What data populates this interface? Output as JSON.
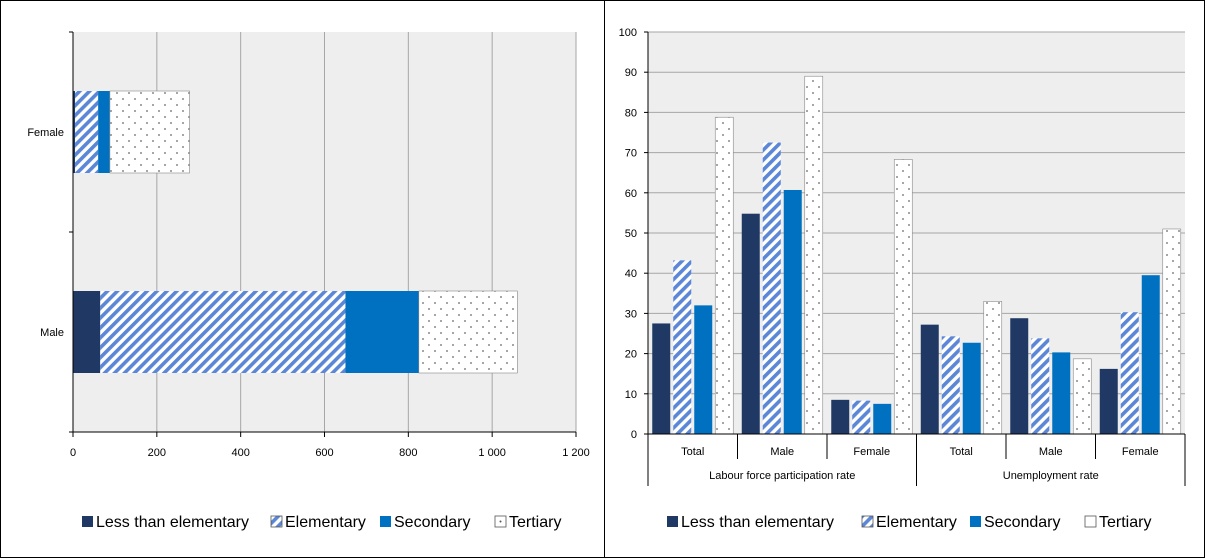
{
  "chart_data": [
    {
      "type": "bar",
      "orientation": "horizontal",
      "stacked": true,
      "categories": [
        "Female",
        "Male"
      ],
      "series": [
        {
          "name": "Less than elementary",
          "values": [
            5,
            65
          ]
        },
        {
          "name": "Elementary",
          "values": [
            55,
            585
          ]
        },
        {
          "name": "Secondary",
          "values": [
            28,
            175
          ]
        },
        {
          "name": "Tertiary",
          "values": [
            190,
            235
          ]
        }
      ],
      "xlim": [
        0,
        1200
      ],
      "xticks": [
        "0",
        "200",
        "400",
        "600",
        "800",
        "1 000",
        "1 200"
      ],
      "grid": "vertical",
      "legend": "bottom",
      "colors": {
        "Less than elementary": "#1f3864",
        "Elementary": "#5b87d6",
        "Secondary": "#0070c0",
        "Tertiary": "#ffffff"
      }
    },
    {
      "type": "bar",
      "orientation": "vertical",
      "groups": [
        {
          "label": "Labour force participation rate",
          "categories": [
            "Total",
            "Male",
            "Female"
          ]
        },
        {
          "label": "Unemployment rate",
          "categories": [
            "Total",
            "Male",
            "Female"
          ]
        }
      ],
      "categories": [
        "Total",
        "Male",
        "Female",
        "Total",
        "Male",
        "Female"
      ],
      "series": [
        {
          "name": "Less than elementary",
          "values": [
            27.5,
            54.8,
            8.5,
            27.2,
            28.8,
            16.2
          ]
        },
        {
          "name": "Elementary",
          "values": [
            43.2,
            72.5,
            8.3,
            24.3,
            23.8,
            30.3
          ]
        },
        {
          "name": "Secondary",
          "values": [
            32,
            60.7,
            7.5,
            22.7,
            20.3,
            39.5
          ]
        },
        {
          "name": "Tertiary",
          "values": [
            78.8,
            89,
            68.3,
            33,
            18.7,
            51
          ]
        }
      ],
      "ylim": [
        0,
        100
      ],
      "yticks": [
        "0",
        "10",
        "20",
        "30",
        "40",
        "50",
        "60",
        "70",
        "80",
        "90",
        "100"
      ],
      "grid": "horizontal",
      "legend": "bottom",
      "colors": {
        "Less than elementary": "#1f3864",
        "Elementary": "#5b87d6",
        "Secondary": "#0070c0",
        "Tertiary": "#ffffff"
      }
    }
  ],
  "legend_labels": [
    "Less than elementary",
    "Elementary",
    "Secondary",
    "Tertiary"
  ]
}
